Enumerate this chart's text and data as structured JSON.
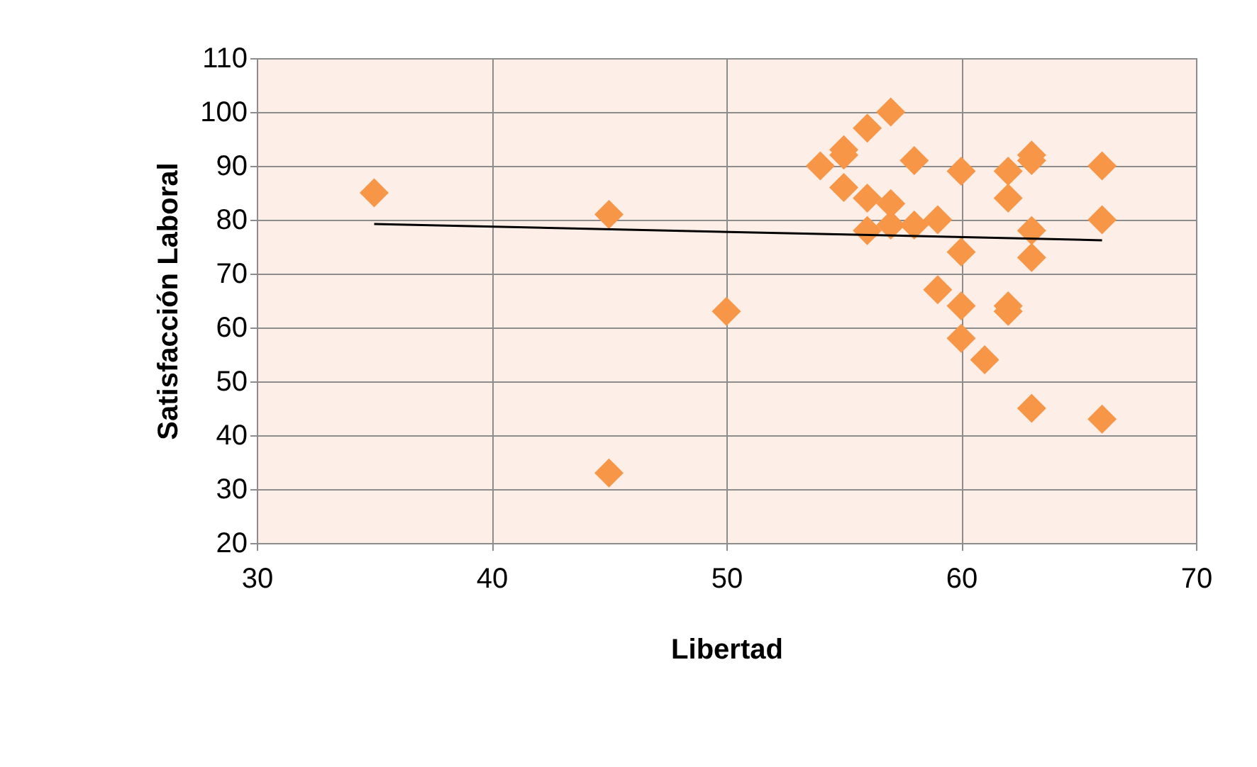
{
  "chart_data": {
    "type": "scatter",
    "xlabel": "Libertad",
    "ylabel": "Satisfacción Laboral",
    "xlim": [
      30,
      70
    ],
    "ylim": [
      20,
      110
    ],
    "xticks": [
      30,
      40,
      50,
      60,
      70
    ],
    "yticks": [
      20,
      30,
      40,
      50,
      60,
      70,
      80,
      90,
      100,
      110
    ],
    "grid": true,
    "series": [
      {
        "marker": "diamond",
        "color": "#f79646",
        "x": [
          35,
          45,
          45,
          50,
          54,
          55,
          55,
          55,
          56,
          56,
          56,
          57,
          57,
          57,
          58,
          58,
          59,
          59,
          60,
          60,
          60,
          60,
          61,
          62,
          62,
          62,
          62,
          63,
          63,
          63,
          63,
          63,
          66,
          66,
          66
        ],
        "values": [
          85,
          81,
          33,
          63,
          90,
          93,
          92,
          86,
          97,
          84,
          78,
          100,
          83,
          79,
          91,
          79,
          80,
          67,
          89,
          74,
          64,
          58,
          54,
          89,
          84,
          64,
          63,
          92,
          91,
          78,
          73,
          45,
          90,
          80,
          43
        ]
      },
      {
        "type": "line",
        "marker": "none",
        "color": "#000000",
        "x": [
          35,
          66
        ],
        "values": [
          79.2,
          76.2
        ]
      }
    ]
  }
}
